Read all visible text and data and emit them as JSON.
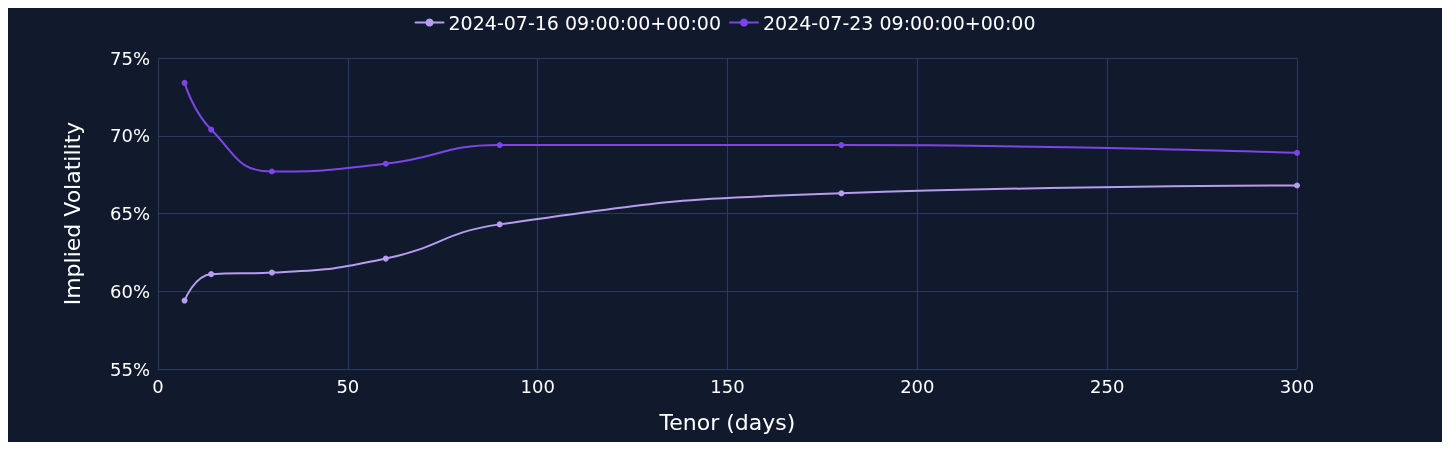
{
  "chart_data": {
    "type": "line",
    "xlabel": "Tenor (days)",
    "ylabel": "Implied Volatility",
    "series": [
      {
        "name": "2024-07-16 09:00:00+00:00",
        "color": "#b79cf2",
        "x": [
          7,
          14,
          30,
          60,
          90,
          180,
          300
        ],
        "values": [
          59.4,
          61.1,
          61.2,
          62.1,
          64.3,
          66.3,
          66.8
        ]
      },
      {
        "name": "2024-07-23 09:00:00+00:00",
        "color": "#7d45e8",
        "x": [
          7,
          14,
          30,
          60,
          90,
          180,
          300
        ],
        "values": [
          73.4,
          70.4,
          67.7,
          68.2,
          69.4,
          69.4,
          68.9
        ]
      }
    ],
    "xlim": [
      0,
      300
    ],
    "xticks": [
      0,
      50,
      100,
      150,
      200,
      250,
      300
    ],
    "ylim": [
      55,
      75
    ],
    "yticks": [
      {
        "value": 55,
        "label": "55%"
      },
      {
        "value": 60,
        "label": "60%"
      },
      {
        "value": 65,
        "label": "65%"
      },
      {
        "value": 70,
        "label": "70%"
      },
      {
        "value": 75,
        "label": "75%"
      }
    ],
    "grid": true,
    "legend": "top",
    "marker": "circle",
    "line_style": "solid"
  }
}
